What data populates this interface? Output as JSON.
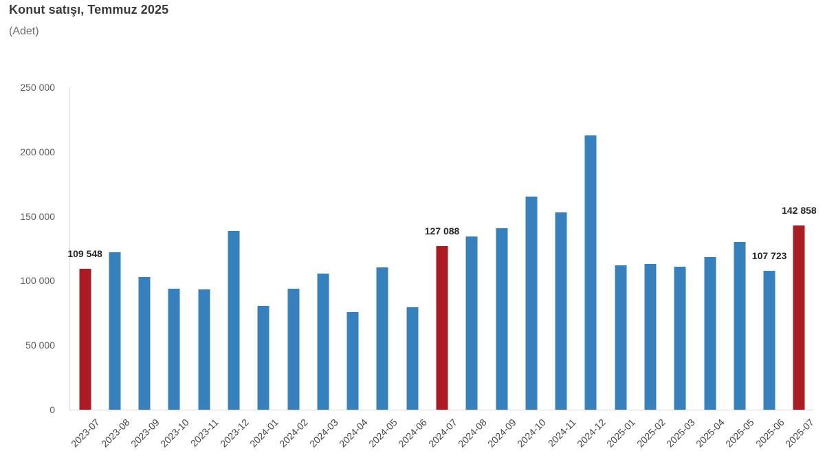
{
  "header": {
    "title": "Konut satışı, Temmuz 2025",
    "subtitle": "(Adet)"
  },
  "chart_data": {
    "type": "bar",
    "title": "Konut satışı, Temmuz 2025",
    "ylabel": "(Adet)",
    "xlabel": "",
    "categories": [
      "2023-07",
      "2023-08",
      "2023-09",
      "2023-10",
      "2023-11",
      "2023-12",
      "2024-01",
      "2024-02",
      "2024-03",
      "2024-04",
      "2024-05",
      "2024-06",
      "2024-07",
      "2024-08",
      "2024-09",
      "2024-10",
      "2024-11",
      "2024-12",
      "2025-01",
      "2025-02",
      "2025-03",
      "2025-04",
      "2025-05",
      "2025-06",
      "2025-07"
    ],
    "values": [
      109548,
      122091,
      102656,
      93761,
      93514,
      138577,
      80308,
      93902,
      105476,
      75569,
      110588,
      79313,
      127088,
      134155,
      140919,
      165138,
      153014,
      212637,
      112173,
      112818,
      110795,
      118359,
      130025,
      107723,
      142858
    ],
    "highlight_indices": [
      0,
      12,
      24
    ],
    "bar_labels": {
      "2023-07": "109 548",
      "2024-07": "127 088",
      "2025-06": "107 723",
      "2025-07": "142 858"
    },
    "ylim": [
      0,
      250000
    ],
    "yticks": [
      0,
      50000,
      100000,
      150000,
      200000,
      250000
    ],
    "ytick_labels": [
      "0",
      "50 000",
      "100 000",
      "150 000",
      "200 000",
      "250 000"
    ],
    "grid": false,
    "legend_position": "none",
    "colors": {
      "bar": "#3580BD",
      "highlight": "#AD1B22",
      "axis_line": "#D9D9D9",
      "title": "#3A3A3A",
      "subtitle": "#6E6E6E",
      "tick_label": "#595959",
      "x_label": "#444444",
      "bar_label": "#262626"
    }
  }
}
